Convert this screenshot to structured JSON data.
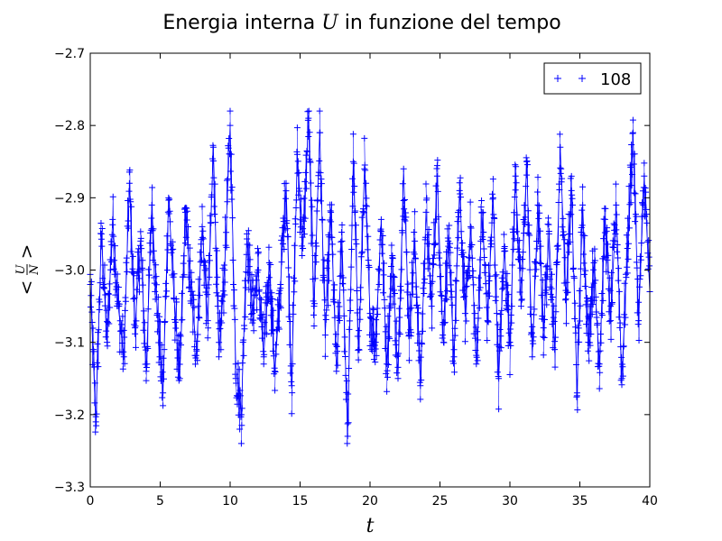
{
  "chart_data": {
    "type": "line",
    "title": "Energia interna U in funzione del tempo",
    "title_parts": {
      "before": "Energia interna ",
      "math": "U",
      "after": " in funzione del tempo"
    },
    "xlabel": "t",
    "ylabel": "<U/N>",
    "ylabel_parts": {
      "lt": "<",
      "num": "U",
      "den": "N",
      "gt": ">"
    },
    "xlim": [
      0,
      40
    ],
    "ylim": [
      -3.3,
      -2.7
    ],
    "xticks": [
      0,
      5,
      10,
      15,
      20,
      25,
      30,
      35,
      40
    ],
    "xtick_labels": [
      "0",
      "5",
      "10",
      "15",
      "20",
      "25",
      "30",
      "35",
      "40"
    ],
    "yticks": [
      -3.3,
      -3.2,
      -3.1,
      -3.0,
      -2.9,
      -2.8,
      -2.7
    ],
    "ytick_labels": [
      "−3.3",
      "−3.2",
      "−3.1",
      "−3.0",
      "−2.9",
      "−2.8",
      "−2.7"
    ],
    "grid": false,
    "legend_position": "top-right",
    "marker": "+",
    "series": [
      {
        "name": "108",
        "color": "#0000ff",
        "x": [
          0.0,
          0.4,
          0.8,
          1.2,
          1.6,
          2.0,
          2.4,
          2.8,
          3.2,
          3.6,
          4.0,
          4.4,
          4.8,
          5.2,
          5.6,
          6.0,
          6.4,
          6.8,
          7.2,
          7.6,
          8.0,
          8.4,
          8.8,
          9.2,
          9.6,
          10.0,
          10.4,
          10.8,
          11.2,
          11.6,
          12.0,
          12.4,
          12.8,
          13.2,
          13.6,
          14.0,
          14.4,
          14.8,
          15.2,
          15.6,
          16.0,
          16.4,
          16.8,
          17.2,
          17.6,
          18.0,
          18.4,
          18.8,
          19.2,
          19.6,
          20.0,
          20.4,
          20.8,
          21.2,
          21.6,
          22.0,
          22.4,
          22.8,
          23.2,
          23.6,
          24.0,
          24.4,
          24.8,
          25.2,
          25.6,
          26.0,
          26.4,
          26.8,
          27.2,
          27.6,
          28.0,
          28.4,
          28.8,
          29.2,
          29.6,
          30.0,
          30.4,
          30.8,
          31.2,
          31.6,
          32.0,
          32.4,
          32.8,
          33.2,
          33.6,
          34.0,
          34.4,
          34.8,
          35.2,
          35.6,
          36.0,
          36.4,
          36.8,
          37.2,
          37.6,
          38.0,
          38.4,
          38.8,
          39.2,
          39.6,
          40.0
        ],
        "y": [
          -3.02,
          -3.21,
          -2.95,
          -3.1,
          -2.93,
          -3.05,
          -3.12,
          -2.88,
          -3.08,
          -2.96,
          -3.14,
          -2.91,
          -3.06,
          -3.17,
          -2.9,
          -3.04,
          -3.15,
          -2.92,
          -3.03,
          -3.11,
          -2.94,
          -3.07,
          -2.83,
          -3.12,
          -3.0,
          -2.8,
          -3.13,
          -3.2,
          -2.95,
          -3.06,
          -3.0,
          -3.12,
          -2.99,
          -3.14,
          -3.02,
          -2.88,
          -3.16,
          -2.84,
          -2.97,
          -2.79,
          -3.05,
          -2.81,
          -3.09,
          -2.92,
          -3.14,
          -2.96,
          -3.23,
          -2.85,
          -3.11,
          -2.86,
          -3.06,
          -3.1,
          -2.93,
          -3.13,
          -2.98,
          -3.15,
          -2.86,
          -3.09,
          -2.96,
          -3.16,
          -2.92,
          -3.05,
          -2.87,
          -3.09,
          -2.96,
          -3.12,
          -2.89,
          -3.06,
          -2.94,
          -3.13,
          -2.92,
          -3.07,
          -2.9,
          -3.15,
          -2.97,
          -3.1,
          -2.87,
          -3.05,
          -2.85,
          -3.12,
          -2.91,
          -3.08,
          -2.95,
          -3.11,
          -2.83,
          -3.04,
          -2.89,
          -3.17,
          -2.91,
          -3.1,
          -2.99,
          -3.13,
          -2.93,
          -3.07,
          -2.91,
          -3.15,
          -2.97,
          -2.81,
          -3.07,
          -2.87,
          -3.03
        ]
      }
    ]
  }
}
